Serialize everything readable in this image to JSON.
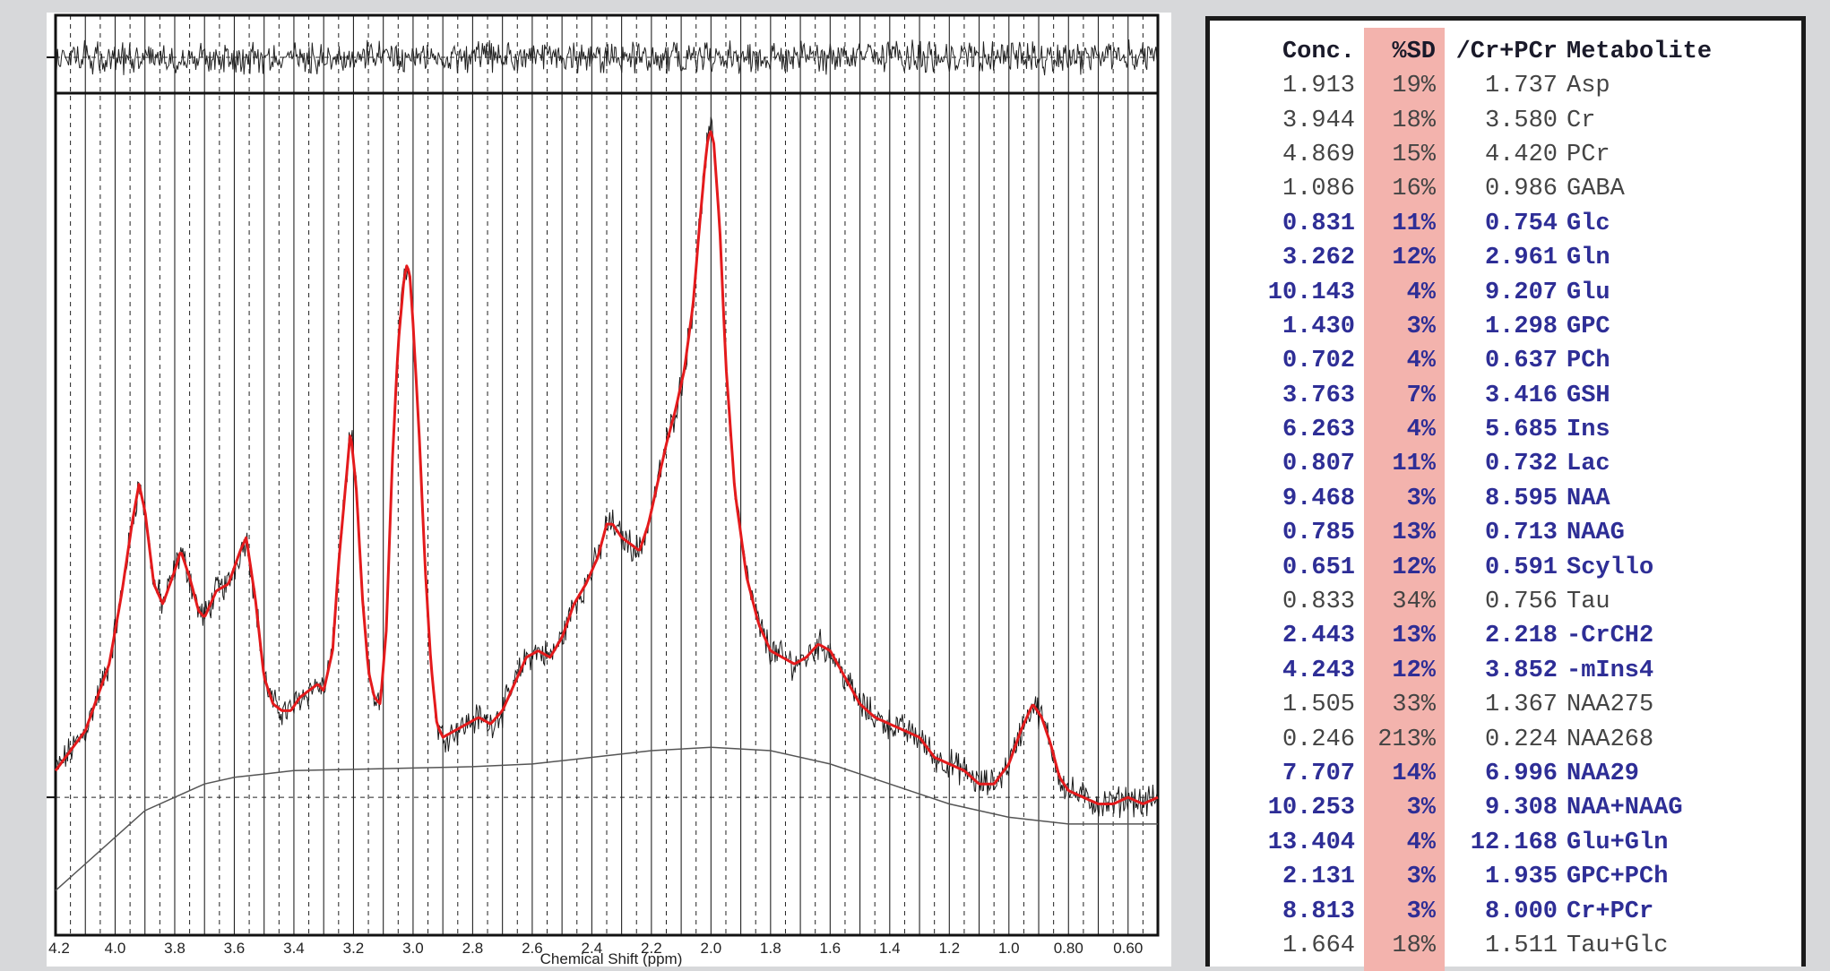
{
  "colors": {
    "fit": "#e41a1c",
    "spectrum": "#1a1a1a",
    "baseline": "#555555",
    "sd_band": "#f3b3ad",
    "bold_text": "#2e2e96",
    "plain_text": "#444444"
  },
  "chart_data": {
    "type": "line",
    "xlabel": "Chemical Shift (ppm)",
    "xlim": [
      4.2,
      0.5
    ],
    "x_reversed": true,
    "ticks": [
      "4.2",
      "4.0",
      "3.8",
      "3.6",
      "3.4",
      "3.2",
      "3.0",
      "2.8",
      "2.6",
      "2.4",
      "2.2",
      "2.0",
      "1.8",
      "1.6",
      "1.4",
      "1.2",
      "1.0",
      "0.80",
      "0.60"
    ],
    "tick_values": [
      4.2,
      4.0,
      3.8,
      3.6,
      3.4,
      3.2,
      3.0,
      2.8,
      2.6,
      2.4,
      2.2,
      2.0,
      1.8,
      1.6,
      1.4,
      1.2,
      1.0,
      0.8,
      0.6
    ],
    "grid": true,
    "series": [
      {
        "role": "fit",
        "x": [
          4.2,
          4.1,
          4.02,
          3.98,
          3.94,
          3.92,
          3.9,
          3.87,
          3.84,
          3.8,
          3.78,
          3.75,
          3.72,
          3.7,
          3.66,
          3.62,
          3.58,
          3.56,
          3.53,
          3.5,
          3.47,
          3.44,
          3.41,
          3.38,
          3.35,
          3.32,
          3.3,
          3.27,
          3.25,
          3.23,
          3.21,
          3.19,
          3.17,
          3.15,
          3.13,
          3.11,
          3.09,
          3.07,
          3.05,
          3.03,
          3.02,
          3.01,
          3.0,
          2.98,
          2.96,
          2.94,
          2.92,
          2.9,
          2.86,
          2.82,
          2.78,
          2.74,
          2.7,
          2.66,
          2.62,
          2.58,
          2.54,
          2.5,
          2.46,
          2.42,
          2.38,
          2.35,
          2.33,
          2.3,
          2.27,
          2.24,
          2.21,
          2.18,
          2.15,
          2.12,
          2.09,
          2.06,
          2.04,
          2.02,
          2.01,
          2.0,
          1.99,
          1.97,
          1.95,
          1.92,
          1.88,
          1.84,
          1.8,
          1.76,
          1.72,
          1.68,
          1.64,
          1.6,
          1.55,
          1.5,
          1.45,
          1.4,
          1.35,
          1.3,
          1.25,
          1.2,
          1.15,
          1.1,
          1.05,
          1.0,
          0.96,
          0.92,
          0.89,
          0.86,
          0.83,
          0.8,
          0.75,
          0.7,
          0.65,
          0.6,
          0.55,
          0.5
        ],
        "y": [
          0.04,
          0.1,
          0.2,
          0.3,
          0.42,
          0.47,
          0.43,
          0.32,
          0.29,
          0.34,
          0.37,
          0.33,
          0.28,
          0.27,
          0.31,
          0.32,
          0.37,
          0.39,
          0.3,
          0.18,
          0.14,
          0.13,
          0.13,
          0.15,
          0.16,
          0.17,
          0.16,
          0.22,
          0.35,
          0.45,
          0.55,
          0.46,
          0.3,
          0.19,
          0.15,
          0.14,
          0.25,
          0.5,
          0.68,
          0.78,
          0.8,
          0.78,
          0.71,
          0.55,
          0.35,
          0.2,
          0.11,
          0.09,
          0.1,
          0.11,
          0.12,
          0.11,
          0.13,
          0.17,
          0.21,
          0.22,
          0.21,
          0.24,
          0.29,
          0.32,
          0.36,
          0.41,
          0.41,
          0.39,
          0.38,
          0.37,
          0.41,
          0.47,
          0.53,
          0.58,
          0.64,
          0.74,
          0.85,
          0.95,
          0.99,
          1.0,
          0.98,
          0.85,
          0.65,
          0.46,
          0.33,
          0.26,
          0.22,
          0.21,
          0.2,
          0.21,
          0.23,
          0.22,
          0.18,
          0.14,
          0.12,
          0.11,
          0.1,
          0.09,
          0.06,
          0.05,
          0.04,
          0.02,
          0.02,
          0.05,
          0.1,
          0.14,
          0.12,
          0.08,
          0.03,
          0.01,
          0.0,
          -0.01,
          -0.01,
          0.0,
          -0.01,
          0.0
        ]
      },
      {
        "role": "baseline",
        "x": [
          4.2,
          4.1,
          4.0,
          3.9,
          3.8,
          3.7,
          3.6,
          3.5,
          3.4,
          3.2,
          3.0,
          2.8,
          2.6,
          2.4,
          2.2,
          2.0,
          1.8,
          1.6,
          1.4,
          1.2,
          1.0,
          0.9,
          0.8,
          0.7,
          0.6,
          0.5
        ],
        "y": [
          -0.14,
          -0.1,
          -0.06,
          -0.02,
          0.0,
          0.02,
          0.03,
          0.035,
          0.04,
          0.042,
          0.044,
          0.046,
          0.05,
          0.06,
          0.07,
          0.075,
          0.07,
          0.05,
          0.02,
          -0.01,
          -0.03,
          -0.035,
          -0.04,
          -0.04,
          -0.04,
          -0.04
        ]
      }
    ],
    "ylim": [
      -0.18,
      1.05
    ],
    "zero_line": true
  },
  "table": {
    "headers": {
      "conc": "Conc.",
      "sd": "%SD",
      "ratio": "/Cr+PCr",
      "metabolite": "Metabolite"
    },
    "rows": [
      {
        "conc": "1.913",
        "sd": "19%",
        "ratio": "1.737",
        "metabolite": "Asp",
        "bold": false
      },
      {
        "conc": "3.944",
        "sd": "18%",
        "ratio": "3.580",
        "metabolite": "Cr",
        "bold": false
      },
      {
        "conc": "4.869",
        "sd": "15%",
        "ratio": "4.420",
        "metabolite": "PCr",
        "bold": false
      },
      {
        "conc": "1.086",
        "sd": "16%",
        "ratio": "0.986",
        "metabolite": "GABA",
        "bold": false
      },
      {
        "conc": "0.831",
        "sd": "11%",
        "ratio": "0.754",
        "metabolite": "Glc",
        "bold": true
      },
      {
        "conc": "3.262",
        "sd": "12%",
        "ratio": "2.961",
        "metabolite": "Gln",
        "bold": true
      },
      {
        "conc": "10.143",
        "sd": "4%",
        "ratio": "9.207",
        "metabolite": "Glu",
        "bold": true
      },
      {
        "conc": "1.430",
        "sd": "3%",
        "ratio": "1.298",
        "metabolite": "GPC",
        "bold": true
      },
      {
        "conc": "0.702",
        "sd": "4%",
        "ratio": "0.637",
        "metabolite": "PCh",
        "bold": true
      },
      {
        "conc": "3.763",
        "sd": "7%",
        "ratio": "3.416",
        "metabolite": "GSH",
        "bold": true
      },
      {
        "conc": "6.263",
        "sd": "4%",
        "ratio": "5.685",
        "metabolite": "Ins",
        "bold": true
      },
      {
        "conc": "0.807",
        "sd": "11%",
        "ratio": "0.732",
        "metabolite": "Lac",
        "bold": true
      },
      {
        "conc": "9.468",
        "sd": "3%",
        "ratio": "8.595",
        "metabolite": "NAA",
        "bold": true
      },
      {
        "conc": "0.785",
        "sd": "13%",
        "ratio": "0.713",
        "metabolite": "NAAG",
        "bold": true
      },
      {
        "conc": "0.651",
        "sd": "12%",
        "ratio": "0.591",
        "metabolite": "Scyllo",
        "bold": true
      },
      {
        "conc": "0.833",
        "sd": "34%",
        "ratio": "0.756",
        "metabolite": "Tau",
        "bold": false
      },
      {
        "conc": "2.443",
        "sd": "13%",
        "ratio": "2.218",
        "metabolite": "-CrCH2",
        "bold": true
      },
      {
        "conc": "4.243",
        "sd": "12%",
        "ratio": "3.852",
        "metabolite": "-mIns4",
        "bold": true
      },
      {
        "conc": "1.505",
        "sd": "33%",
        "ratio": "1.367",
        "metabolite": "NAA275",
        "bold": false
      },
      {
        "conc": "0.246",
        "sd": "213%",
        "ratio": "0.224",
        "metabolite": "NAA268",
        "bold": false
      },
      {
        "conc": "7.707",
        "sd": "14%",
        "ratio": "6.996",
        "metabolite": "NAA29",
        "bold": true
      },
      {
        "conc": "10.253",
        "sd": "3%",
        "ratio": "9.308",
        "metabolite": "NAA+NAAG",
        "bold": true
      },
      {
        "conc": "13.404",
        "sd": "4%",
        "ratio": "12.168",
        "metabolite": "Glu+Gln",
        "bold": true
      },
      {
        "conc": "2.131",
        "sd": "3%",
        "ratio": "1.935",
        "metabolite": "GPC+PCh",
        "bold": true
      },
      {
        "conc": "8.813",
        "sd": "3%",
        "ratio": "8.000",
        "metabolite": "Cr+PCr",
        "bold": true
      },
      {
        "conc": "1.664",
        "sd": "18%",
        "ratio": "1.511",
        "metabolite": "Tau+Glc",
        "bold": false
      }
    ]
  }
}
